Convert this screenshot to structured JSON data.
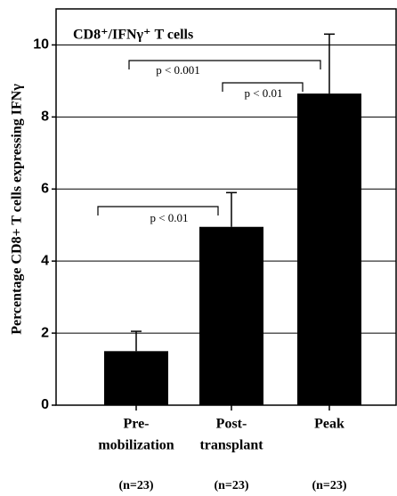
{
  "chart_data": {
    "type": "bar",
    "title": "CD8⁺/IFNγ⁺ T cells",
    "y_label": "Percentage CD8+ T cells expressing IFNγ",
    "categories": [
      [
        "Pre-",
        "mobilization"
      ],
      [
        "Post-",
        "transplant"
      ],
      [
        "Peak"
      ]
    ],
    "group_sizes": [
      "(n=23)",
      "(n=23)",
      "(n=23)"
    ],
    "values": [
      1.5,
      4.95,
      8.65
    ],
    "errors": [
      0.55,
      0.95,
      1.65
    ],
    "color": "#000000",
    "ylim": [
      0,
      11
    ],
    "yticks": [
      0,
      2,
      4,
      6,
      8,
      10
    ],
    "grid": true,
    "annotations": [
      "p < 0.001",
      "p < 0.01",
      "p < 0.01"
    ]
  }
}
